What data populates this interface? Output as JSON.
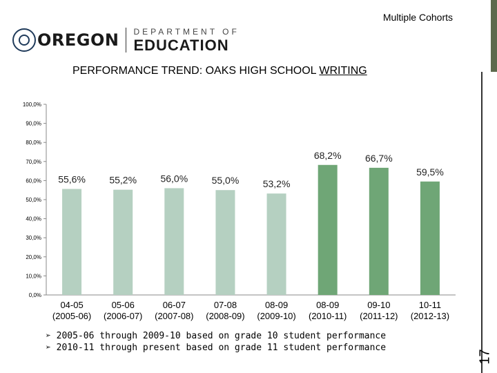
{
  "header": {
    "corner_label": "Multiple Cohorts",
    "logo_name": "OREGON",
    "logo_dept_top": "DEPARTMENT OF",
    "logo_dept_bottom": "EDUCATION",
    "title_prefix": "PERFORMANCE TREND: OAKS HIGH SCHOOL ",
    "title_emph": "WRITING",
    "page_number": "17"
  },
  "notes": [
    "➢ 2005-06 through 2009-10 based on grade 10 student performance",
    "➢ 2010-11 through present based on grade 11 student performance"
  ],
  "colors": {
    "light": "#b5d0c1",
    "dark": "#6fa676",
    "rail": "#5d6a4d"
  },
  "chart_data": {
    "type": "bar",
    "categories": [
      [
        "04-05",
        "(2005-06)"
      ],
      [
        "05-06",
        "(2006-07)"
      ],
      [
        "06-07",
        "(2007-08)"
      ],
      [
        "07-08",
        "(2008-09)"
      ],
      [
        "08-09",
        "(2009-10)"
      ],
      [
        "08-09",
        "(2010-11)"
      ],
      [
        "09-10",
        "(2011-12)"
      ],
      [
        "10-11",
        "(2012-13)"
      ]
    ],
    "values": [
      55.6,
      55.2,
      56.0,
      55.0,
      53.2,
      68.2,
      66.7,
      59.5
    ],
    "data_labels": [
      "55,6%",
      "55,2%",
      "56,0%",
      "55,0%",
      "53,2%",
      "68,2%",
      "66,7%",
      "59,5%"
    ],
    "bar_colors": [
      "light",
      "light",
      "light",
      "light",
      "light",
      "dark",
      "dark",
      "dark"
    ],
    "yticks": [
      "0,0%",
      "10,0%",
      "20,0%",
      "30,0%",
      "40,0%",
      "50,0%",
      "60,0%",
      "70,0%",
      "80,0%",
      "90,0%",
      "100,0%"
    ],
    "ylim": [
      0,
      100
    ],
    "grid": false
  }
}
